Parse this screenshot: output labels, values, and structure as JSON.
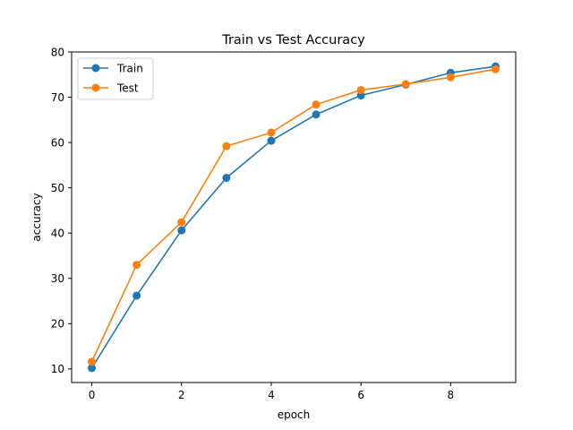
{
  "chart_data": {
    "type": "line",
    "title": "Train vs Test Accuracy",
    "xlabel": "epoch",
    "ylabel": "accuracy",
    "x": [
      0,
      1,
      2,
      3,
      4,
      5,
      6,
      7,
      8,
      9
    ],
    "xlim": [
      -0.45,
      9.45
    ],
    "ylim": [
      7.0,
      80.0
    ],
    "xticks": [
      0,
      2,
      4,
      6,
      8
    ],
    "yticks": [
      10,
      20,
      30,
      40,
      50,
      60,
      70,
      80
    ],
    "grid": false,
    "legend_position": "top-left",
    "marker": "circle",
    "series": [
      {
        "name": "Train",
        "color": "#1f77b4",
        "values": [
          10.2,
          26.2,
          40.6,
          52.2,
          60.4,
          66.2,
          70.4,
          72.8,
          75.4,
          76.8
        ]
      },
      {
        "name": "Test",
        "color": "#ff7f0e",
        "values": [
          11.6,
          33.0,
          42.4,
          59.2,
          62.2,
          68.4,
          71.6,
          72.9,
          74.4,
          76.2
        ]
      }
    ]
  }
}
